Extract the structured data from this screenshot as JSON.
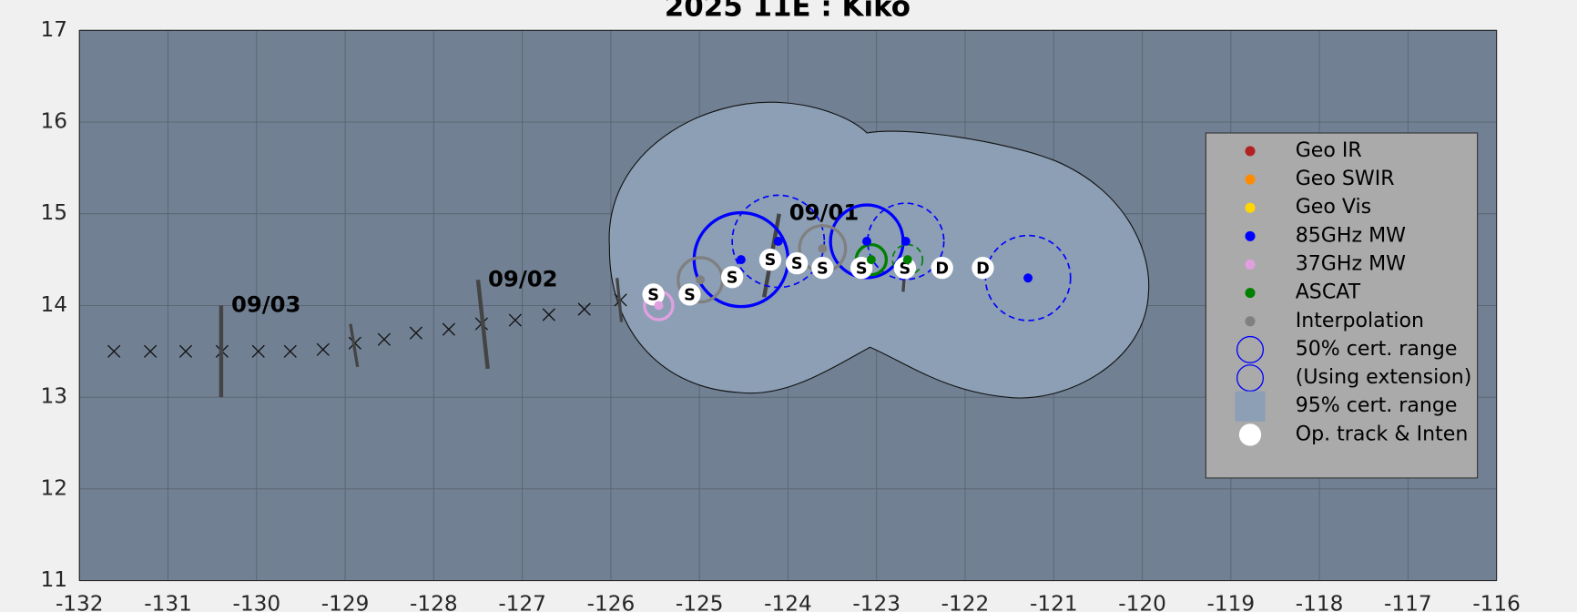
{
  "chart_data": {
    "type": "track",
    "title": "2025  11E :  Kiko",
    "xlim": [
      -132,
      -116
    ],
    "ylim": [
      11,
      17
    ],
    "xticks": [
      -132,
      -131,
      -130,
      -129,
      -128,
      -127,
      -126,
      -125,
      -124,
      -123,
      -122,
      -121,
      -120,
      -119,
      -118,
      -117,
      -116
    ],
    "yticks": [
      11,
      12,
      13,
      14,
      15,
      16,
      17
    ],
    "grid": true,
    "legend": "right",
    "forecast": {
      "x": [
        -131.61,
        -131.2,
        -130.8,
        -130.39,
        -129.98,
        -129.62,
        -129.25,
        -128.89,
        -128.56,
        -128.2,
        -127.83,
        -127.46,
        -127.08,
        -126.7,
        -126.3,
        -125.89
      ],
      "y": [
        13.5,
        13.5,
        13.5,
        13.5,
        13.5,
        13.5,
        13.52,
        13.59,
        13.63,
        13.7,
        13.74,
        13.8,
        13.84,
        13.9,
        13.96,
        14.06
      ]
    },
    "date_marks": [
      {
        "label": "09/03",
        "x": [
          -130.4,
          -130.4
        ],
        "y": [
          14,
          13
        ]
      },
      {
        "label": null,
        "x": [
          -128.94,
          -128.86
        ],
        "y": [
          13.8,
          13.33
        ]
      },
      {
        "label": "09/02",
        "x": [
          -127.5,
          -127.39
        ],
        "y": [
          14.28,
          13.31
        ]
      },
      {
        "label": null,
        "x": [
          -125.93,
          -125.88
        ],
        "y": [
          14.3,
          13.82
        ]
      },
      {
        "label": "09/01",
        "x": [
          -124.1,
          -124.27
        ],
        "y": [
          15.0,
          14.09
        ]
      },
      {
        "label": null,
        "x": [
          -122.68,
          -122.7
        ],
        "y": [
          14.41,
          14.15
        ]
      }
    ],
    "series": [
      {
        "name": "Geo IR",
        "color": "#b22222",
        "x": [],
        "y": [],
        "radius": [],
        "extension": []
      },
      {
        "name": "Geo SWIR",
        "color": "#ff8c00",
        "x": [],
        "y": [],
        "radius": [],
        "extension": []
      },
      {
        "name": "Geo Vis",
        "color": "#ffd700",
        "x": [],
        "y": [],
        "radius": [],
        "extension": []
      },
      {
        "name": "85GHz MW",
        "color": "#0000ff",
        "x": [
          -124.53,
          -124.11,
          -123.11,
          -122.67,
          -121.29
        ],
        "y": [
          14.5,
          14.7,
          14.7,
          14.7,
          14.3
        ],
        "radius": [
          0.53,
          0.52,
          0.41,
          0.43,
          0.48
        ],
        "extension": [
          false,
          true,
          false,
          true,
          true
        ]
      },
      {
        "name": "37GHz MW",
        "color": "#e0a0e0",
        "x": [
          -125.46
        ],
        "y": [
          14.0
        ],
        "radius": [
          0.16
        ],
        "extension": [
          false
        ]
      },
      {
        "name": "ASCAT",
        "color": "#008000",
        "x": [
          -123.06,
          -122.65
        ],
        "y": [
          14.5,
          14.5
        ],
        "radius": [
          0.17,
          0.17
        ],
        "extension": [
          false,
          true
        ]
      },
      {
        "name": "Interpolation",
        "color": "#808080",
        "x": [
          -124.99,
          -123.61
        ],
        "y": [
          14.28,
          14.62
        ],
        "radius": [
          0.25,
          0.26
        ],
        "extension": [
          false,
          false
        ]
      }
    ],
    "cert_legend": [
      "50% cert. range",
      "(Using extension)",
      "95% cert. range"
    ],
    "region_color": "#8c9fb5",
    "op_track": {
      "name": "Op. track & Inten",
      "x": [
        -125.52,
        -125.11,
        -124.63,
        -124.2,
        -123.9,
        -123.61,
        -123.17,
        -122.68,
        -122.26,
        -121.8
      ],
      "y": [
        14.12,
        14.12,
        14.31,
        14.5,
        14.46,
        14.41,
        14.41,
        14.41,
        14.41,
        14.41
      ],
      "labels": [
        "S",
        "S",
        "S",
        "S",
        "S",
        "S",
        "S",
        "S",
        "D",
        "D"
      ]
    }
  }
}
